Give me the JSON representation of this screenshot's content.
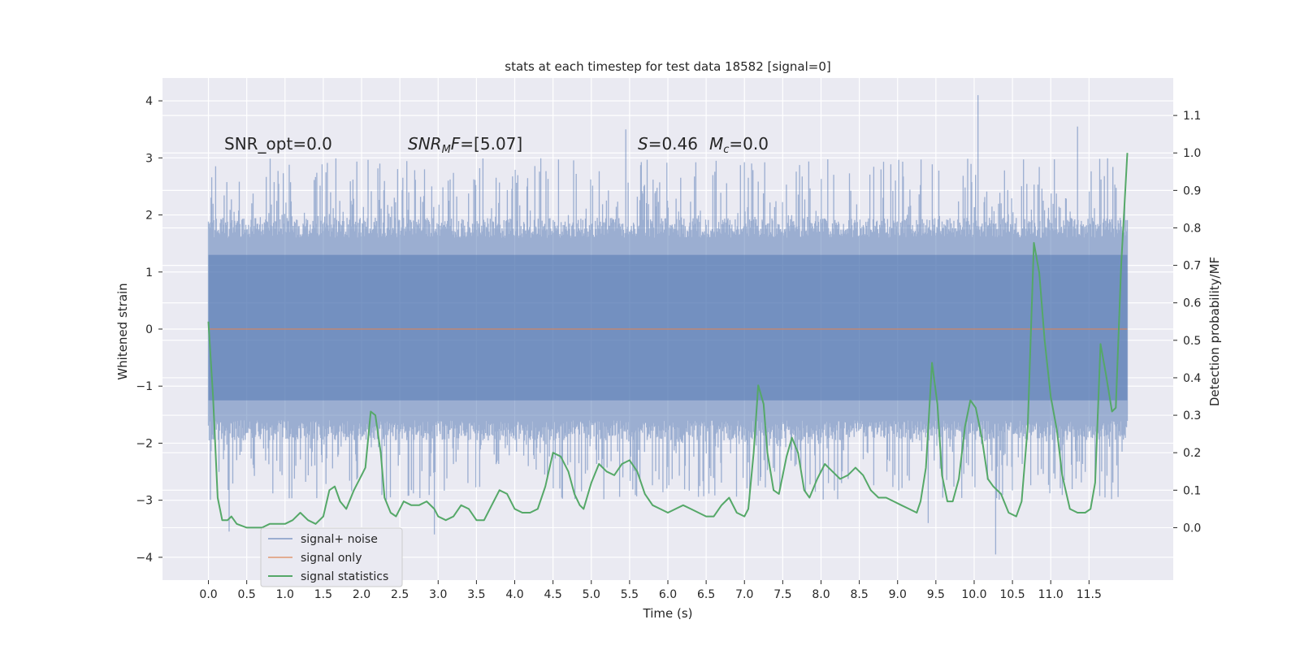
{
  "chart_data": {
    "type": "line",
    "title": "stats at each timestep for test data 18582 [signal=0]",
    "xlabel": "Time (s)",
    "ylabel": "Whitened strain",
    "y2label": "Detection probability/MF",
    "xlim": [
      -0.6,
      12.6
    ],
    "ylim": [
      -4.4,
      4.4
    ],
    "y2lim": [
      -0.14,
      1.2
    ],
    "x_ticks": [
      "0.0",
      "0.5",
      "1.0",
      "1.5",
      "2.0",
      "2.5",
      "3.0",
      "3.5",
      "4.0",
      "4.5",
      "5.0",
      "5.5",
      "6.0",
      "6.5",
      "7.0",
      "7.5",
      "8.0",
      "8.5",
      "9.0",
      "9.5",
      "10.0",
      "10.5",
      "11.0",
      "11.5"
    ],
    "y_ticks": [
      "4",
      "3",
      "2",
      "1",
      "0",
      "−1",
      "−2",
      "−3",
      "−4"
    ],
    "y2_ticks": [
      "1.1",
      "1.0",
      "0.9",
      "0.8",
      "0.7",
      "0.6",
      "0.5",
      "0.4",
      "0.3",
      "0.2",
      "0.1",
      "0.0"
    ],
    "grid": true,
    "legend_position": "lower-left",
    "annotations": [
      {
        "id": "snr-opt",
        "text": "SNR_opt=0.0"
      },
      {
        "id": "snr-mf",
        "text": "SNR_MF=[5.07]"
      },
      {
        "id": "s-mc",
        "text": "S=0.46   M_c=0.0"
      }
    ],
    "series": [
      {
        "name": "signal+ noise",
        "axis": "left",
        "color": "#4c72b0",
        "style": "noise band",
        "x_range": [
          0.0,
          12.0
        ],
        "envelope": {
          "dense_upper": 1.9,
          "dense_lower": -1.9,
          "spike_max": 4.1,
          "spike_min": -4.0
        },
        "notable_spikes": [
          {
            "x": 0.27,
            "y": -3.55
          },
          {
            "x": 2.95,
            "y": -3.6
          },
          {
            "x": 5.45,
            "y": 3.5
          },
          {
            "x": 9.4,
            "y": -3.4
          },
          {
            "x": 10.05,
            "y": 4.1
          },
          {
            "x": 10.28,
            "y": -3.95
          },
          {
            "x": 11.35,
            "y": 3.55
          }
        ]
      },
      {
        "name": "signal only",
        "axis": "left",
        "color": "#dd8452",
        "x": [
          0.0,
          12.0
        ],
        "y": [
          0.0,
          0.0
        ]
      },
      {
        "name": "signal statistics",
        "axis": "right",
        "color": "#55a868",
        "x": [
          0.0,
          0.06,
          0.12,
          0.18,
          0.25,
          0.3,
          0.37,
          0.5,
          0.6,
          0.7,
          0.8,
          0.9,
          1.0,
          1.1,
          1.2,
          1.3,
          1.4,
          1.5,
          1.58,
          1.65,
          1.72,
          1.8,
          1.9,
          2.0,
          2.05,
          2.12,
          2.18,
          2.25,
          2.3,
          2.38,
          2.45,
          2.55,
          2.65,
          2.75,
          2.85,
          2.95,
          3.0,
          3.1,
          3.2,
          3.3,
          3.4,
          3.5,
          3.6,
          3.7,
          3.8,
          3.9,
          4.0,
          4.1,
          4.2,
          4.3,
          4.4,
          4.5,
          4.6,
          4.7,
          4.78,
          4.85,
          4.9,
          5.0,
          5.1,
          5.2,
          5.3,
          5.4,
          5.5,
          5.6,
          5.7,
          5.8,
          5.9,
          6.0,
          6.1,
          6.2,
          6.3,
          6.4,
          6.5,
          6.6,
          6.7,
          6.8,
          6.9,
          7.0,
          7.05,
          7.12,
          7.18,
          7.25,
          7.3,
          7.38,
          7.45,
          7.55,
          7.62,
          7.7,
          7.78,
          7.85,
          7.95,
          8.05,
          8.15,
          8.25,
          8.35,
          8.45,
          8.55,
          8.65,
          8.75,
          8.85,
          8.95,
          9.05,
          9.15,
          9.25,
          9.3,
          9.37,
          9.45,
          9.52,
          9.58,
          9.65,
          9.72,
          9.8,
          9.88,
          9.95,
          10.02,
          10.1,
          10.18,
          10.25,
          10.35,
          10.45,
          10.55,
          10.62,
          10.7,
          10.78,
          10.85,
          10.92,
          11.0,
          11.08,
          11.15,
          11.25,
          11.35,
          11.45,
          11.52,
          11.58,
          11.65,
          11.72,
          11.8,
          11.85,
          11.92,
          12.0
        ],
        "y": [
          0.55,
          0.35,
          0.08,
          0.02,
          0.02,
          0.03,
          0.01,
          0.0,
          0.0,
          0.0,
          0.01,
          0.01,
          0.01,
          0.02,
          0.04,
          0.02,
          0.01,
          0.03,
          0.1,
          0.11,
          0.07,
          0.05,
          0.1,
          0.14,
          0.16,
          0.31,
          0.3,
          0.2,
          0.08,
          0.04,
          0.03,
          0.07,
          0.06,
          0.06,
          0.07,
          0.05,
          0.03,
          0.02,
          0.03,
          0.06,
          0.05,
          0.02,
          0.02,
          0.06,
          0.1,
          0.09,
          0.05,
          0.04,
          0.04,
          0.05,
          0.11,
          0.2,
          0.19,
          0.15,
          0.09,
          0.06,
          0.05,
          0.12,
          0.17,
          0.15,
          0.14,
          0.17,
          0.18,
          0.15,
          0.09,
          0.06,
          0.05,
          0.04,
          0.05,
          0.06,
          0.05,
          0.04,
          0.03,
          0.03,
          0.06,
          0.08,
          0.04,
          0.03,
          0.05,
          0.2,
          0.38,
          0.33,
          0.2,
          0.1,
          0.09,
          0.19,
          0.24,
          0.2,
          0.1,
          0.08,
          0.13,
          0.17,
          0.15,
          0.13,
          0.14,
          0.16,
          0.14,
          0.1,
          0.08,
          0.08,
          0.07,
          0.06,
          0.05,
          0.04,
          0.07,
          0.16,
          0.44,
          0.33,
          0.14,
          0.07,
          0.07,
          0.13,
          0.27,
          0.34,
          0.32,
          0.24,
          0.13,
          0.11,
          0.09,
          0.04,
          0.03,
          0.07,
          0.27,
          0.76,
          0.68,
          0.5,
          0.35,
          0.26,
          0.14,
          0.05,
          0.04,
          0.04,
          0.05,
          0.12,
          0.49,
          0.41,
          0.31,
          0.32,
          0.7,
          1.0
        ]
      }
    ]
  }
}
